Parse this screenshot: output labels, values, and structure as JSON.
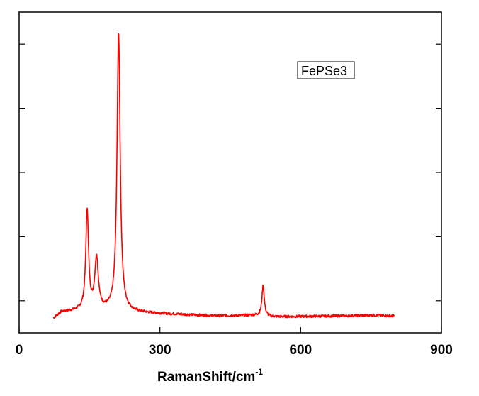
{
  "chart_data": {
    "type": "line",
    "title": "",
    "xlabel": "RamanShift/cm",
    "xlabel_superscript": "-1",
    "ylabel": "",
    "xlim": [
      0,
      900
    ],
    "x_ticks": [
      0,
      300,
      600,
      900
    ],
    "x_tick_labels": [
      "0",
      "300",
      "600",
      "900"
    ],
    "ylim": [
      0,
      1.0
    ],
    "y_ticks": [
      0.1,
      0.3,
      0.5,
      0.7,
      0.9
    ],
    "y_tick_labels_visible": false,
    "grid": false,
    "legend_position": "top-right",
    "series": [
      {
        "name": "FePSe3",
        "color": "#ff0000",
        "peaks": [
          {
            "x": 145,
            "height": 0.31,
            "width": 3.5
          },
          {
            "x": 165,
            "height": 0.16,
            "width": 4.5
          },
          {
            "x": 212,
            "height": 0.87,
            "width": 4.0
          },
          {
            "x": 520,
            "height": 0.095,
            "width": 3.0
          }
        ],
        "baseline": [
          [
            73,
            0.045
          ],
          [
            90,
            0.065
          ],
          [
            120,
            0.068
          ],
          [
            140,
            0.07
          ],
          [
            180,
            0.07
          ],
          [
            230,
            0.065
          ],
          [
            300,
            0.06
          ],
          [
            420,
            0.053
          ],
          [
            500,
            0.055
          ],
          [
            540,
            0.05
          ],
          [
            650,
            0.052
          ],
          [
            760,
            0.055
          ],
          [
            800,
            0.052
          ]
        ],
        "x_start": 73,
        "x_end": 800
      }
    ]
  }
}
